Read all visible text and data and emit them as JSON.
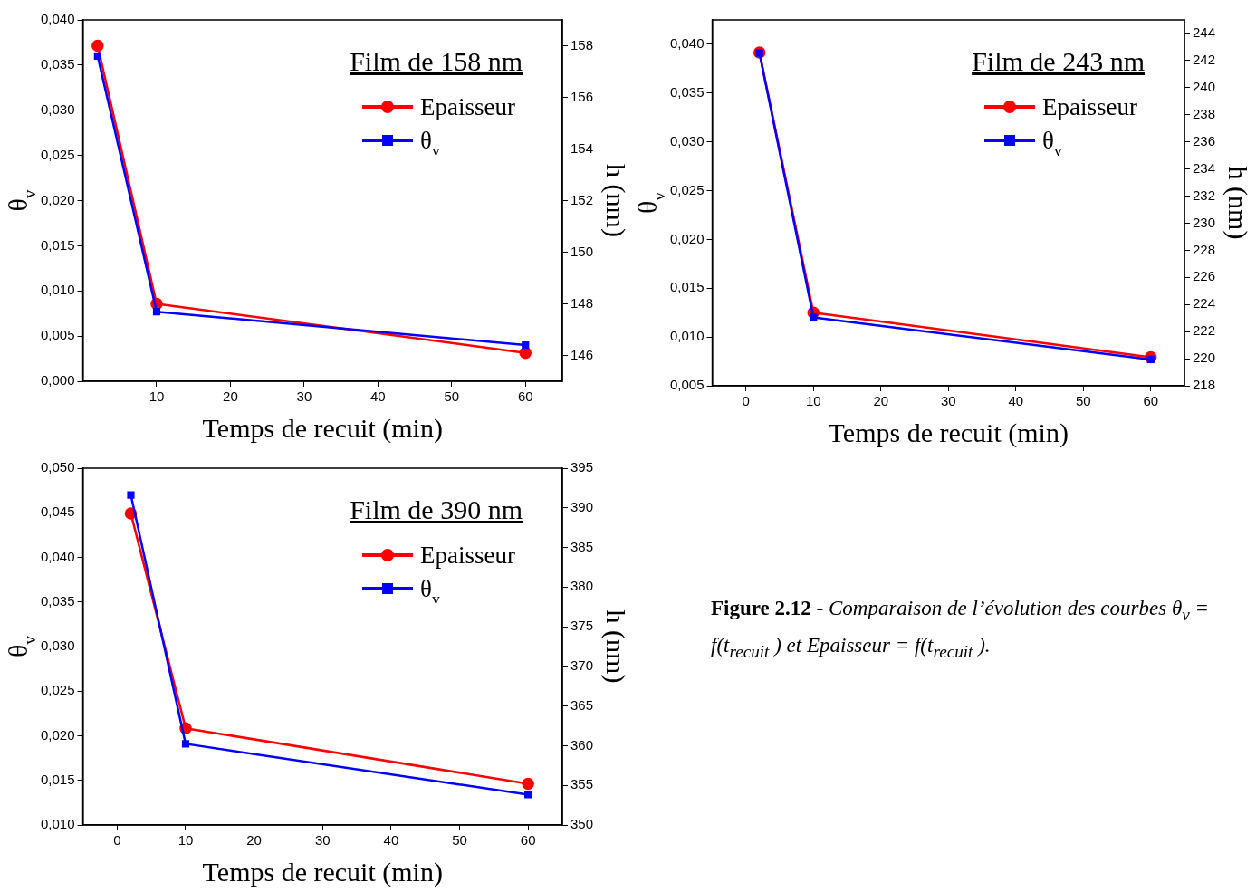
{
  "chart_data": [
    {
      "type": "line",
      "title": "Film de 158 nm",
      "xlabel": "Temps de recuit (min)",
      "ylabel": "θ$_{v}$",
      "y2label": "h (nm)",
      "x": [
        2,
        10,
        60
      ],
      "xlim": [
        0,
        65
      ],
      "xticks": [
        10,
        20,
        30,
        40,
        50,
        60
      ],
      "ylim": [
        0,
        0.04
      ],
      "yticks": [
        {
          "value": 0,
          "label": "0,000"
        },
        {
          "value": 0.005,
          "label": "0,005"
        },
        {
          "value": 0.01,
          "label": "0,010"
        },
        {
          "value": 0.015,
          "label": "0,015"
        },
        {
          "value": 0.02,
          "label": "0,020"
        },
        {
          "value": 0.025,
          "label": "0,025"
        },
        {
          "value": 0.03,
          "label": "0,030"
        },
        {
          "value": 0.035,
          "label": "0,035"
        },
        {
          "value": 0.04,
          "label": "0,040"
        }
      ],
      "y2lim": [
        145,
        159
      ],
      "y2ticks": [
        146,
        148,
        150,
        152,
        154,
        156,
        158
      ],
      "legend": "top right",
      "series": [
        {
          "name": "Epaisseur",
          "color": "#ff0000",
          "axis": "y2",
          "marker": "circle",
          "values": [
            158.0,
            148.0,
            146.1
          ]
        },
        {
          "name": "θ$_{v}$",
          "color": "#0000ff",
          "marker": "square",
          "values": [
            0.036,
            0.0077,
            0.004
          ]
        }
      ]
    },
    {
      "type": "line",
      "title": "Film de 243 nm",
      "xlabel": "Temps de recuit (min)",
      "ylabel": "θ$_{v}$",
      "y2label": "h (nm)",
      "x": [
        2,
        10,
        60
      ],
      "xlim": [
        -5,
        65
      ],
      "xticks": [
        0,
        10,
        20,
        30,
        40,
        50,
        60
      ],
      "ylim": [
        0.005,
        0.0425
      ],
      "yticks": [
        {
          "value": 0.005,
          "label": "0,005"
        },
        {
          "value": 0.01,
          "label": "0,010"
        },
        {
          "value": 0.015,
          "label": "0,015"
        },
        {
          "value": 0.02,
          "label": "0,020"
        },
        {
          "value": 0.025,
          "label": "0,025"
        },
        {
          "value": 0.03,
          "label": "0,030"
        },
        {
          "value": 0.035,
          "label": "0,035"
        },
        {
          "value": 0.04,
          "label": "0,040"
        }
      ],
      "y2lim": [
        218,
        245
      ],
      "y2ticks": [
        218,
        220,
        222,
        224,
        226,
        228,
        230,
        232,
        234,
        236,
        238,
        240,
        242,
        244
      ],
      "legend": "top right",
      "series": [
        {
          "name": "Epaisseur",
          "color": "#ff0000",
          "axis": "y2",
          "marker": "circle",
          "values": [
            242.6,
            223.4,
            220.1
          ]
        },
        {
          "name": "θ$_{v}$",
          "color": "#0000ff",
          "marker": "square",
          "values": [
            0.0391,
            0.012,
            0.0077
          ]
        }
      ]
    },
    {
      "type": "line",
      "title": "Film de 390 nm",
      "xlabel": "Temps de recuit (min)",
      "ylabel": "θ$_{v}$",
      "y2label": "h (nm)",
      "x": [
        2,
        10,
        60
      ],
      "xlim": [
        -5,
        65
      ],
      "xticks": [
        0,
        10,
        20,
        30,
        40,
        50,
        60
      ],
      "ylim": [
        0.01,
        0.05
      ],
      "yticks": [
        {
          "value": 0.01,
          "label": "0,010"
        },
        {
          "value": 0.015,
          "label": "0,015"
        },
        {
          "value": 0.02,
          "label": "0,020"
        },
        {
          "value": 0.025,
          "label": "0,025"
        },
        {
          "value": 0.03,
          "label": "0,030"
        },
        {
          "value": 0.035,
          "label": "0,035"
        },
        {
          "value": 0.04,
          "label": "0,040"
        },
        {
          "value": 0.045,
          "label": "0,045"
        },
        {
          "value": 0.05,
          "label": "0,050"
        }
      ],
      "y2lim": [
        350,
        395
      ],
      "y2ticks": [
        350,
        355,
        360,
        365,
        370,
        375,
        380,
        385,
        390,
        395
      ],
      "legend": "top right",
      "series": [
        {
          "name": "Epaisseur",
          "color": "#ff0000",
          "axis": "y2",
          "marker": "circle",
          "values": [
            389.3,
            362.2,
            355.2
          ]
        },
        {
          "name": "θ$_{v}$",
          "color": "#0000ff",
          "marker": "square",
          "values": [
            0.047,
            0.0191,
            0.0134
          ]
        }
      ]
    },
    {
      "type": "other",
      "annotations": [
        "Figure 2.12 -",
        "Comparaison de l’évolution des courbes θ$_{v}$ = f(t$_{recuit}$ ) et Epaisseur = f(t$_{recuit}$ )."
      ]
    }
  ]
}
